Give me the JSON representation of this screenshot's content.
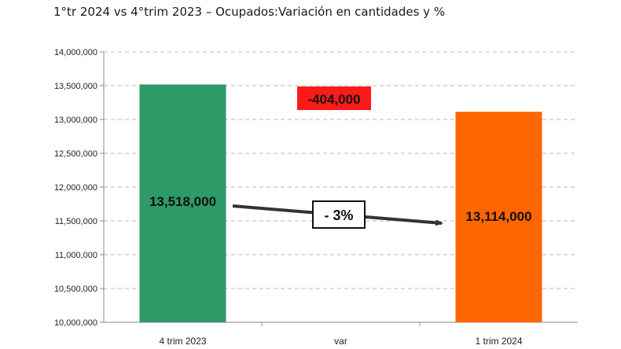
{
  "chart_data": {
    "type": "bar",
    "title": "1°tr 2024 vs 4°trim 2023 – Ocupados:Variación en cantidades y %",
    "categories": [
      "4 trim 2023",
      "var",
      "1 trim 2024"
    ],
    "values": [
      13518000,
      null,
      13114000
    ],
    "data_labels": [
      "13,518,000",
      "",
      "13,114,000"
    ],
    "bar_colors": [
      "#2e9a67",
      null,
      "#ff6600"
    ],
    "ylim": [
      10000000,
      14000000
    ],
    "yticks": [
      10000000,
      10500000,
      11000000,
      11500000,
      12000000,
      12500000,
      13000000,
      13500000,
      14000000
    ],
    "ytick_labels": [
      "10,000,000",
      "10,500,000",
      "11,000,000",
      "11,500,000",
      "12,000,000",
      "12,500,000",
      "13,000,000",
      "13,500,000",
      "14,000,000"
    ],
    "grid": true,
    "annotations": {
      "difference": {
        "text": "-404,000",
        "background": "#ff1a1a"
      },
      "percent_change": {
        "text": "- 3%"
      }
    }
  }
}
